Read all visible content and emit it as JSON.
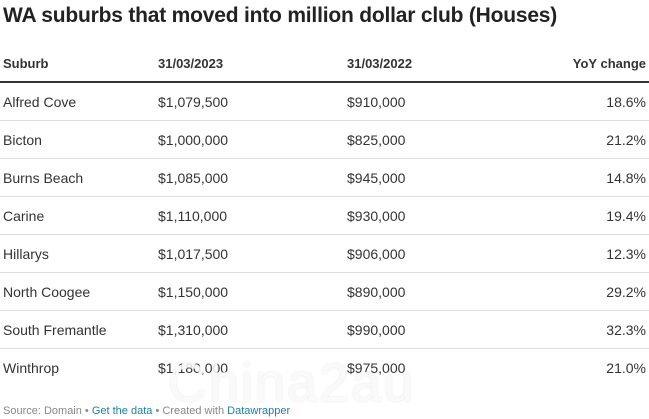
{
  "title": "WA suburbs that moved into million dollar club (Houses)",
  "table": {
    "headers": [
      "Suburb",
      "31/03/2023",
      "31/03/2022",
      "YoY change"
    ],
    "rows": [
      [
        "Alfred Cove",
        "$1,079,500",
        "$910,000",
        "18.6%"
      ],
      [
        "Bicton",
        "$1,000,000",
        "$825,000",
        "21.2%"
      ],
      [
        "Burns Beach",
        "$1,085,000",
        "$945,000",
        "14.8%"
      ],
      [
        "Carine",
        "$1,110,000",
        "$930,000",
        "19.4%"
      ],
      [
        "Hillarys",
        "$1,017,500",
        "$906,000",
        "12.3%"
      ],
      [
        "North Coogee",
        "$1,150,000",
        "$890,000",
        "29.2%"
      ],
      [
        "South Fremantle",
        "$1,310,000",
        "$990,000",
        "32.3%"
      ],
      [
        "Winthrop",
        "$1,180,000",
        "$975,000",
        "21.0%"
      ]
    ]
  },
  "footer": {
    "source": "Source: Domain",
    "sep1": " • ",
    "get_data": "Get the data",
    "sep2": " • ",
    "created_with": "Created with ",
    "tool": "Datawrapper"
  },
  "watermark": "Chinа2au",
  "colors": {
    "text": "#333333",
    "link": "#1d81a2",
    "muted": "#888888",
    "divider": "#dddddd"
  }
}
